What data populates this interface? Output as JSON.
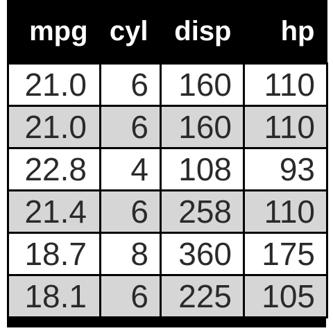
{
  "table": {
    "columns": [
      "mpg",
      "cyl",
      "disp",
      "hp"
    ],
    "rows": [
      [
        "21.0",
        "6",
        "160",
        "110"
      ],
      [
        "21.0",
        "6",
        "160",
        "110"
      ],
      [
        "22.8",
        "4",
        "108",
        "93"
      ],
      [
        "21.4",
        "6",
        "258",
        "110"
      ],
      [
        "18.7",
        "8",
        "360",
        "175"
      ],
      [
        "18.1",
        "6",
        "225",
        "105"
      ]
    ]
  },
  "colors": {
    "header_bg": "#000000",
    "header_text": "#ffffff",
    "row_odd": "#ffffff",
    "row_even": "#d6d6d6",
    "grid": "#000000"
  }
}
